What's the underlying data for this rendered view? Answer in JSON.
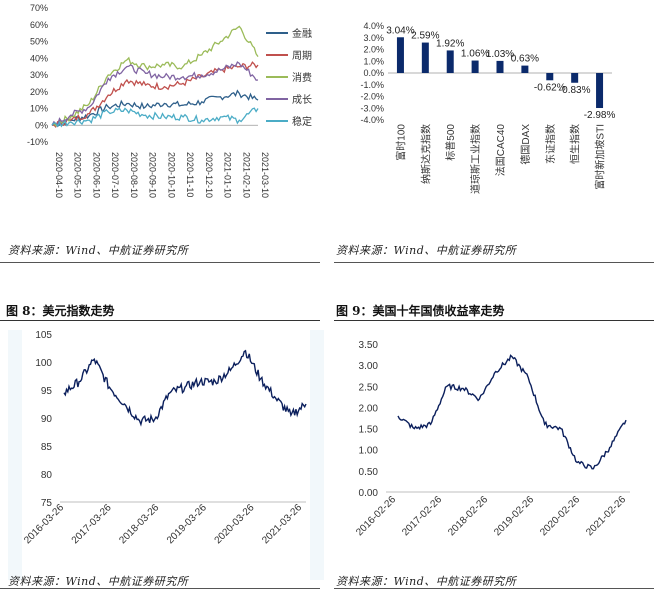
{
  "sources": {
    "top_left": "资料来源：Wind、中航证券研究所",
    "top_right": "资料来源：Wind、中航证券研究所",
    "bottom_left": "资料来源：Wind、中航证券研究所",
    "bottom_right": "资料来源：Wind、中航证券研究所"
  },
  "figures": {
    "fig8": "图 8：美元指数走势",
    "fig9": "图 9：美国十年国债收益率走势"
  },
  "chart_data": [
    {
      "type": "line",
      "x": [
        "2020-04-10",
        "2020-05-10",
        "2020-06-10",
        "2020-07-10",
        "2020-08-10",
        "2020-09-10",
        "2020-10-10",
        "2020-11-10",
        "2020-12-10",
        "2021-01-10",
        "2021-02-10",
        "2021-03-10"
      ],
      "ylim": [
        -10,
        70
      ],
      "yticks": [
        "-10%",
        "0%",
        "10%",
        "20%",
        "30%",
        "40%",
        "50%",
        "60%",
        "70%"
      ],
      "series": [
        {
          "name": "金融",
          "color": "#2e5f8a",
          "values": [
            0,
            3,
            6,
            11,
            13,
            11,
            13,
            12,
            14,
            17,
            19,
            15
          ]
        },
        {
          "name": "周期",
          "color": "#c0504d",
          "values": [
            0,
            3,
            7,
            18,
            27,
            24,
            23,
            25,
            29,
            33,
            35,
            36
          ]
        },
        {
          "name": "消费",
          "color": "#9bbb59",
          "values": [
            0,
            5,
            13,
            30,
            39,
            35,
            36,
            35,
            42,
            50,
            59,
            41
          ]
        },
        {
          "name": "成长",
          "color": "#8064a2",
          "values": [
            0,
            6,
            11,
            28,
            35,
            31,
            29,
            29,
            30,
            33,
            37,
            27
          ]
        },
        {
          "name": "稳定",
          "color": "#4bacc6",
          "values": [
            0,
            2,
            3,
            8,
            9,
            6,
            5,
            5,
            3,
            5,
            3,
            10
          ]
        }
      ]
    },
    {
      "type": "bar",
      "categories": [
        "富时100",
        "纳斯达克指数",
        "标普500",
        "道琼斯工业指数",
        "法国CAC40",
        "德国DAX",
        "东证指数",
        "恒生指数",
        "富时新加坡STI"
      ],
      "values": [
        3.04,
        2.59,
        1.92,
        1.06,
        1.03,
        0.63,
        -0.62,
        -0.83,
        -2.98
      ],
      "labels": [
        "3.04%",
        "2.59%",
        "1.92%",
        "1.06%",
        "1.03%",
        "0.63%",
        "-0.62%",
        "-0.83%",
        "-2.98%"
      ],
      "ylim": [
        -4,
        4
      ],
      "yticks": [
        "4.0%",
        "3.0%",
        "2.0%",
        "1.0%",
        "0.0%",
        "-1.0%",
        "-2.0%",
        "-3.0%",
        "-4.0%"
      ],
      "color": "#0b2a6b"
    },
    {
      "type": "line",
      "x": [
        "2016-03-26",
        "2016-09-26",
        "2017-03-26",
        "2017-06-26",
        "2017-09-26",
        "2018-01-26",
        "2018-03-26",
        "2018-06-26",
        "2018-09-26",
        "2019-01-26",
        "2019-03-26",
        "2019-09-26",
        "2020-03-26",
        "2020-06-26",
        "2020-09-26",
        "2021-01-26",
        "2021-03-26"
      ],
      "xticks": [
        "2016-03-26",
        "2017-03-26",
        "2018-03-26",
        "2019-03-26",
        "2020-03-26",
        "2021-03-26"
      ],
      "ylim": [
        75,
        105
      ],
      "yticks": [
        "105",
        "100",
        "95",
        "90",
        "85",
        "80",
        "75"
      ],
      "series": [
        {
          "color": "#0b1f5c",
          "values": [
            94.5,
            96.5,
            100.5,
            95.5,
            92.5,
            89.5,
            89.8,
            94.5,
            95.5,
            96.5,
            96.5,
            98.5,
            102.0,
            97.0,
            93.5,
            90.5,
            92.5
          ]
        }
      ]
    },
    {
      "type": "line",
      "x": [
        "2016-02-26",
        "2016-06-26",
        "2016-09-26",
        "2016-12-26",
        "2017-02-26",
        "2017-09-26",
        "2018-02-26",
        "2018-10-26",
        "2019-02-26",
        "2019-08-26",
        "2020-02-26",
        "2020-03-26",
        "2020-08-26",
        "2021-01-26",
        "2021-02-26"
      ],
      "xticks": [
        "2016-02-26",
        "2017-02-26",
        "2018-02-26",
        "2019-02-26",
        "2020-02-26",
        "2021-02-26"
      ],
      "ylim": [
        0,
        3.5
      ],
      "yticks": [
        "3.50",
        "3.00",
        "2.50",
        "2.00",
        "1.50",
        "1.00",
        "0.50",
        "0.00"
      ],
      "series": [
        {
          "color": "#0b1f5c",
          "values": [
            1.8,
            1.5,
            1.6,
            2.5,
            2.45,
            2.2,
            2.85,
            3.2,
            2.7,
            1.6,
            1.5,
            0.7,
            0.55,
            1.05,
            1.7
          ]
        }
      ]
    }
  ]
}
